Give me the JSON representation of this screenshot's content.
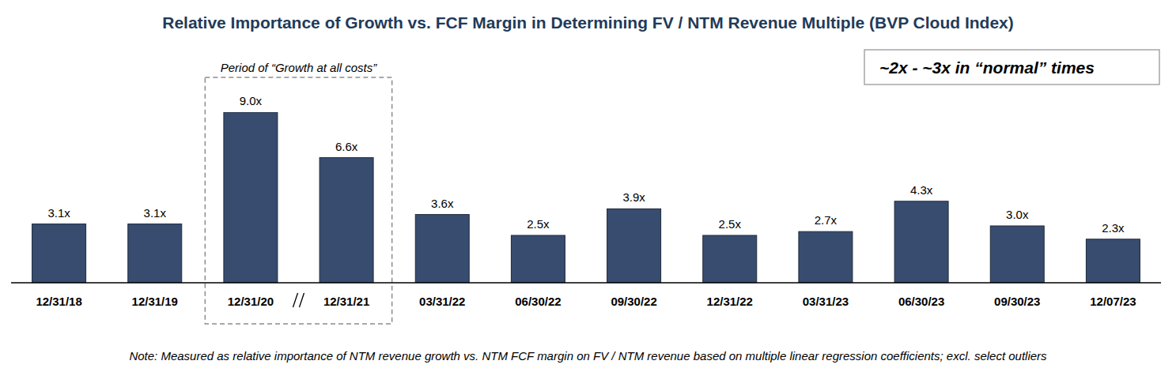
{
  "chart_data": {
    "type": "bar",
    "title": "Relative Importance of Growth vs. FCF Margin in Determining FV / NTM Revenue Multiple (BVP Cloud Index)",
    "categories": [
      "12/31/18",
      "12/31/19",
      "12/31/20",
      "12/31/21",
      "03/31/22",
      "06/30/22",
      "09/30/22",
      "12/31/22",
      "03/31/23",
      "06/30/23",
      "09/30/23",
      "12/07/23"
    ],
    "values": [
      3.1,
      3.1,
      9.0,
      6.6,
      3.6,
      2.5,
      3.9,
      2.5,
      2.7,
      4.3,
      3.0,
      2.3
    ],
    "value_labels": [
      "3.1x",
      "3.1x",
      "9.0x",
      "6.6x",
      "3.6x",
      "2.5x",
      "3.9x",
      "2.5x",
      "2.7x",
      "4.3x",
      "3.0x",
      "2.3x"
    ],
    "color": "#374c6e",
    "ylim": [
      0,
      9.0
    ],
    "grid": false,
    "data_labels": true,
    "tick_labels": "x",
    "annotations": [
      {
        "text": "Period of “Growth at all costs”",
        "span": [
          "12/31/20",
          "12/31/21"
        ]
      },
      {
        "text": "~2x - ~3x in “normal” times"
      }
    ],
    "note": "Note: Measured as relative importance of NTM revenue growth vs. NTM FCF margin on FV / NTM revenue based on multiple linear regression coefficients; excl. select outliers"
  }
}
